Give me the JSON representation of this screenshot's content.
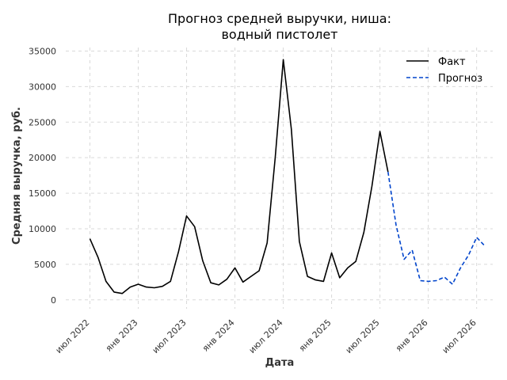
{
  "chart_data": {
    "type": "line",
    "title_lines": [
      "Прогноз средней выручки, ниша:",
      "водный пистолет"
    ],
    "xlabel": "Дата",
    "ylabel": "Средняя выручка, руб.",
    "ylim": [
      0,
      35000
    ],
    "yticks": [
      0,
      5000,
      10000,
      15000,
      20000,
      25000,
      30000,
      35000
    ],
    "xlim": [
      "2022-04",
      "2026-09"
    ],
    "xticks": [
      {
        "date": "2022-07",
        "label": "июл 2022"
      },
      {
        "date": "2023-01",
        "label": "янв 2023"
      },
      {
        "date": "2023-07",
        "label": "июл 2023"
      },
      {
        "date": "2024-01",
        "label": "янв 2024"
      },
      {
        "date": "2024-07",
        "label": "июл 2024"
      },
      {
        "date": "2025-01",
        "label": "янв 2025"
      },
      {
        "date": "2025-07",
        "label": "июл 2025"
      },
      {
        "date": "2026-01",
        "label": "янв 2026"
      },
      {
        "date": "2026-07",
        "label": "июл 2026"
      }
    ],
    "grid": true,
    "legend_position": "top-right",
    "series": [
      {
        "name": "Факт",
        "color": "#000000",
        "style": "solid",
        "x": [
          "2022-07",
          "2022-08",
          "2022-09",
          "2022-10",
          "2022-11",
          "2022-12",
          "2023-01",
          "2023-02",
          "2023-03",
          "2023-04",
          "2023-05",
          "2023-06",
          "2023-07",
          "2023-08",
          "2023-09",
          "2023-10",
          "2023-11",
          "2023-12",
          "2024-01",
          "2024-02",
          "2024-03",
          "2024-04",
          "2024-05",
          "2024-06",
          "2024-07",
          "2024-08",
          "2024-09",
          "2024-10",
          "2024-11",
          "2024-12",
          "2025-01",
          "2025-02",
          "2025-03",
          "2025-04",
          "2025-05",
          "2025-06",
          "2025-07",
          "2025-08"
        ],
        "values": [
          8600,
          6000,
          2600,
          1100,
          900,
          1800,
          2200,
          1800,
          1700,
          1900,
          2600,
          6800,
          11800,
          10300,
          5500,
          2400,
          2100,
          2900,
          4500,
          2500,
          3300,
          4100,
          8000,
          20000,
          33800,
          24000,
          8200,
          3300,
          2800,
          2600,
          6600,
          3100,
          4500,
          5400,
          9500,
          16000,
          23700,
          18000
        ]
      },
      {
        "name": "Прогноз",
        "color": "#0044cc",
        "style": "dashed",
        "x": [
          "2025-08",
          "2025-09",
          "2025-10",
          "2025-11",
          "2025-12",
          "2026-01",
          "2026-02",
          "2026-03",
          "2026-04",
          "2026-05",
          "2026-06",
          "2026-07",
          "2026-08"
        ],
        "values": [
          18000,
          10500,
          5700,
          7000,
          2700,
          2600,
          2700,
          3200,
          2200,
          4500,
          6300,
          8800,
          7600
        ]
      }
    ]
  }
}
